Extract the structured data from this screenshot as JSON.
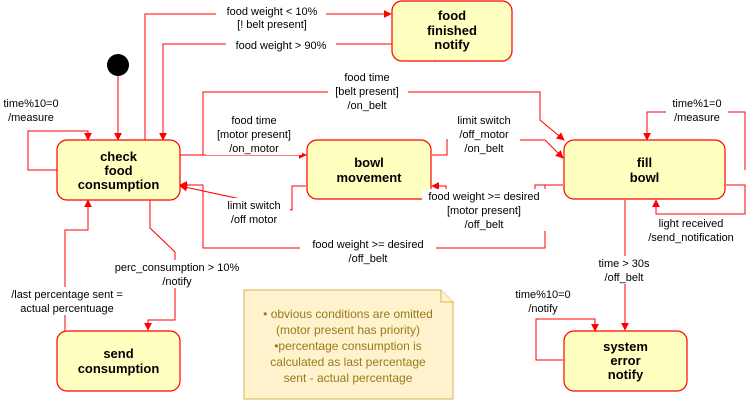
{
  "states": {
    "check_food": [
      "check",
      "food",
      "consumption"
    ],
    "food_finished": [
      "food",
      "finished",
      "notify"
    ],
    "bowl_movement": [
      "bowl",
      "movement"
    ],
    "fill_bowl": [
      "fill",
      "bowl"
    ],
    "send_consumption": [
      "send",
      "consumption"
    ],
    "system_error": [
      "system",
      "error",
      "notify"
    ]
  },
  "transitions": {
    "food_low_belt": [
      "food weight < 10%",
      "[! belt present]"
    ],
    "food_over_90": [
      "food weight > 90%"
    ],
    "measure_check": [
      "time%10=0",
      "/measure"
    ],
    "food_time_belt": [
      "food time",
      "[belt present]",
      "/on_belt"
    ],
    "food_time_motor": [
      "food time",
      "[motor present]",
      "/on_motor"
    ],
    "limit_switch_on_belt": [
      "limit switch",
      "/off_motor",
      "/on_belt"
    ],
    "measure_fill": [
      "time%1=0",
      "/measure"
    ],
    "limit_switch_off_motor": [
      "limit switch",
      "/off motor"
    ],
    "desired_motor": [
      "food weight >= desired",
      "[motor present]",
      "/off_belt"
    ],
    "light_received": [
      "light received",
      "/send_notification"
    ],
    "desired_belt": [
      "food weight >= desired",
      "/off_belt"
    ],
    "perc_consumption": [
      "perc_consumption > 10%",
      "/notify"
    ],
    "last_percentage": [
      "/last percentage sent =",
      "actual percentuage"
    ],
    "timeout": [
      "time > 30s",
      "/off_belt"
    ],
    "error_notify_loop": [
      "time%10=0",
      "/notify"
    ]
  },
  "note": [
    "• obvious conditions are omitted",
    "(motor present has priority)",
    "•percentage consumption is",
    "calculated as last percentage",
    "sent - actual percentage"
  ],
  "colors": {
    "state_fill": "#ffffc0",
    "state_stroke": "#ff0000",
    "edge": "#ff0000",
    "note_fill": "#fff2cc",
    "note_stroke": "#d6b656",
    "note_text": "#997a1a"
  }
}
